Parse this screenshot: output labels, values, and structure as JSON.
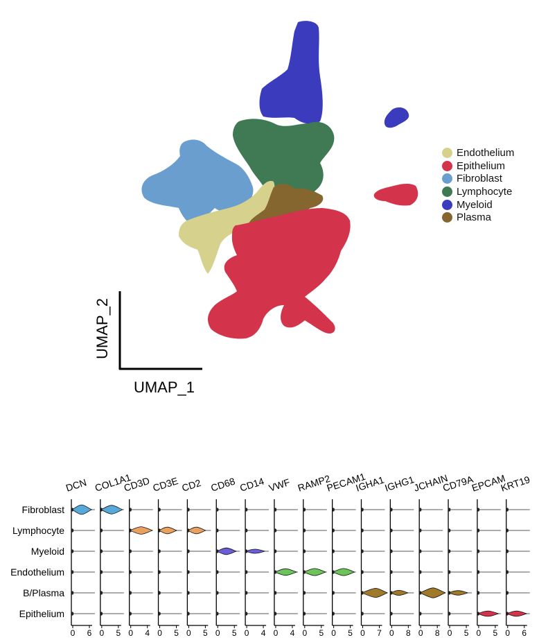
{
  "chart_data": [
    {
      "type": "scatter",
      "xlabel": "UMAP_1",
      "ylabel": "UMAP_2",
      "legend_placement": "right",
      "series": [
        {
          "name": "Endothelium",
          "color": "#d6d28e"
        },
        {
          "name": "Epithelium",
          "color": "#d3344c"
        },
        {
          "name": "Fibroblast",
          "color": "#6a9ecf"
        },
        {
          "name": "Lymphocyte",
          "color": "#3f7a54"
        },
        {
          "name": "Myeloid",
          "color": "#3a3cbd"
        },
        {
          "name": "Plasma",
          "color": "#84662e"
        }
      ]
    },
    {
      "type": "violin",
      "genes": [
        "DCN",
        "COL1A1",
        "CD3D",
        "CD3E",
        "CD2",
        "CD68",
        "CD14",
        "VWF",
        "RAMP2",
        "PECAM1",
        "IGHA1",
        "IGHG1",
        "JCHAIN",
        "CD79A",
        "EPCAM",
        "KRT19"
      ],
      "cell_types": [
        "Fibroblast",
        "Lymphocyte",
        "Myeloid",
        "Endothelium",
        "B/Plasma",
        "Epithelium"
      ],
      "x_ticks": [
        [
          "0",
          "6"
        ],
        [
          "0",
          "5"
        ],
        [
          "0",
          "4"
        ],
        [
          "0",
          "5"
        ],
        [
          "0",
          "5"
        ],
        [
          "0",
          "5"
        ],
        [
          "0",
          "4"
        ],
        [
          "0",
          "4"
        ],
        [
          "0",
          "5"
        ],
        [
          "0",
          "5"
        ],
        [
          "0",
          "7"
        ],
        [
          "0",
          "8"
        ],
        [
          "0",
          "8"
        ],
        [
          "0",
          "5"
        ],
        [
          "0",
          "5"
        ],
        [
          "0",
          "6"
        ]
      ],
      "highlights": [
        {
          "gene": "DCN",
          "cell_type": "Fibroblast",
          "peak": 3.2,
          "width": 0.9,
          "color": "#57a9d9"
        },
        {
          "gene": "COL1A1",
          "cell_type": "Fibroblast",
          "peak": 3.0,
          "width": 0.8,
          "color": "#57a9d9"
        },
        {
          "gene": "CD3D",
          "cell_type": "Lymphocyte",
          "peak": 2.5,
          "width": 0.65,
          "color": "#e9a15f"
        },
        {
          "gene": "CD3E",
          "cell_type": "Lymphocyte",
          "peak": 2.3,
          "width": 0.55,
          "color": "#e9a15f"
        },
        {
          "gene": "CD2",
          "cell_type": "Lymphocyte",
          "peak": 2.3,
          "width": 0.55,
          "color": "#e9a15f"
        },
        {
          "gene": "CD68",
          "cell_type": "Myeloid",
          "peak": 2.6,
          "width": 0.55,
          "color": "#6a5fd6"
        },
        {
          "gene": "CD14",
          "cell_type": "Myeloid",
          "peak": 2.0,
          "width": 0.25,
          "color": "#6a5fd6"
        },
        {
          "gene": "VWF",
          "cell_type": "Endothelium",
          "peak": 2.4,
          "width": 0.55,
          "color": "#6cc45a"
        },
        {
          "gene": "RAMP2",
          "cell_type": "Endothelium",
          "peak": 3.0,
          "width": 0.6,
          "color": "#6cc45a"
        },
        {
          "gene": "PECAM1",
          "cell_type": "Endothelium",
          "peak": 3.0,
          "width": 0.6,
          "color": "#6cc45a"
        },
        {
          "gene": "IGHA1",
          "cell_type": "B/Plasma",
          "peak": 5.5,
          "width": 0.85,
          "color": "#a07a2a"
        },
        {
          "gene": "IGHG1",
          "cell_type": "B/Plasma",
          "peak": 3.5,
          "width": 0.35,
          "color": "#a07a2a"
        },
        {
          "gene": "JCHAIN",
          "cell_type": "B/Plasma",
          "peak": 6.0,
          "width": 0.95,
          "color": "#a07a2a"
        },
        {
          "gene": "CD79A",
          "cell_type": "B/Plasma",
          "peak": 2.5,
          "width": 0.3,
          "color": "#a07a2a"
        },
        {
          "gene": "EPCAM",
          "cell_type": "Epithelium",
          "peak": 2.8,
          "width": 0.4,
          "color": "#d3344c"
        },
        {
          "gene": "KRT19",
          "cell_type": "Epithelium",
          "peak": 3.2,
          "width": 0.4,
          "color": "#d3344c"
        }
      ]
    }
  ]
}
